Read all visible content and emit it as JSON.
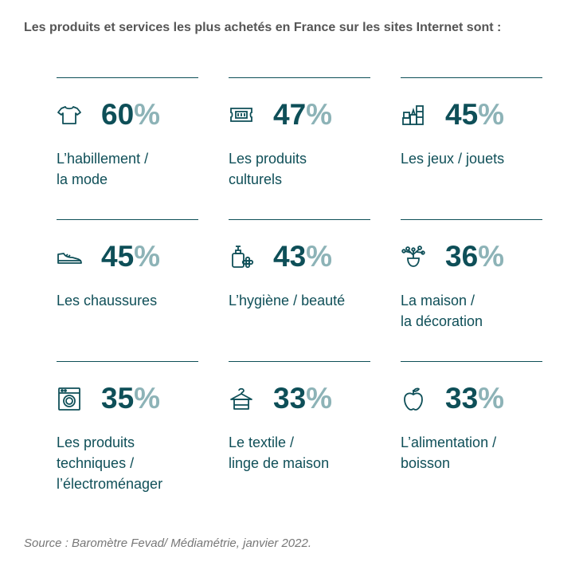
{
  "heading": "Les produits et services les plus achetés en France sur les sites Internet sont :",
  "source": "Source : Baromètre Fevad/ Médiamétrie, janvier 2022.",
  "colors": {
    "number": "#0e4f58",
    "percent_sign": "#8db3b7",
    "rule": "#0d4f57",
    "label": "#0f4f58"
  },
  "chart_data": {
    "type": "table",
    "unit": "%",
    "items": [
      {
        "icon": "tshirt-icon",
        "value": 60,
        "value_text": "60",
        "label": "L’habillement /\nla mode"
      },
      {
        "icon": "ticket-icon",
        "value": 47,
        "value_text": "47",
        "label": "Les produits\nculturels"
      },
      {
        "icon": "blocks-icon",
        "value": 45,
        "value_text": "45",
        "label": "Les jeux / jouets"
      },
      {
        "icon": "shoe-icon",
        "value": 45,
        "value_text": "45",
        "label": "Les chaussures"
      },
      {
        "icon": "soap-bottle-icon",
        "value": 43,
        "value_text": "43",
        "label": "L’hygiène / beauté"
      },
      {
        "icon": "plant-vase-icon",
        "value": 36,
        "value_text": "36",
        "label": "La maison /\nla décoration"
      },
      {
        "icon": "washing-machine-icon",
        "value": 35,
        "value_text": "35",
        "label": "Les produits\ntechniques /\nl’électroménager"
      },
      {
        "icon": "hanger-towel-icon",
        "value": 33,
        "value_text": "33",
        "label": "Le textile /\nlinge de maison"
      },
      {
        "icon": "apple-icon",
        "value": 33,
        "value_text": "33",
        "label": "L’alimentation /\nboisson"
      }
    ]
  }
}
